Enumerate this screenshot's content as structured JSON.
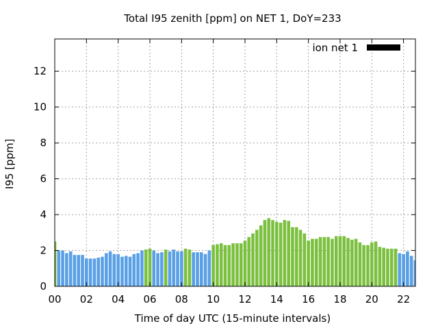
{
  "chart_data": {
    "type": "bar",
    "title": "Total I95 zenith [ppm] on NET 1, DoY=233",
    "xlabel": "Time of day UTC (15-minute intervals)",
    "ylabel": "I95 [ppm]",
    "xlim": [
      0,
      22.75
    ],
    "ylim": [
      0,
      13.8
    ],
    "x_ticks": [
      0,
      2,
      4,
      6,
      8,
      10,
      12,
      14,
      16,
      18,
      20,
      22
    ],
    "x_tick_labels": [
      "00",
      "02",
      "04",
      "06",
      "08",
      "10",
      "12",
      "14",
      "16",
      "18",
      "20",
      "22"
    ],
    "y_ticks": [
      0,
      2,
      4,
      6,
      8,
      10,
      12
    ],
    "y_tick_labels": [
      "0",
      "2",
      "4",
      "6",
      "8",
      "10",
      "12"
    ],
    "grid": true,
    "legend": {
      "label": "ion net 1",
      "color": "#000000",
      "position": "top-right"
    },
    "colors": {
      "blue": "#5aa0e6",
      "green": "#7cc040"
    },
    "interval_hours": 0.25,
    "values": [
      2.5,
      2.0,
      2.0,
      1.85,
      1.95,
      1.75,
      1.75,
      1.75,
      1.55,
      1.55,
      1.55,
      1.6,
      1.65,
      1.85,
      1.95,
      1.8,
      1.8,
      1.65,
      1.7,
      1.65,
      1.8,
      1.85,
      2.0,
      2.05,
      2.1,
      2.0,
      1.85,
      1.9,
      2.05,
      1.95,
      2.05,
      1.95,
      1.95,
      2.1,
      2.05,
      1.9,
      1.9,
      1.9,
      1.8,
      2.0,
      2.3,
      2.35,
      2.4,
      2.3,
      2.3,
      2.4,
      2.4,
      2.4,
      2.55,
      2.75,
      2.95,
      3.15,
      3.4,
      3.7,
      3.8,
      3.7,
      3.6,
      3.55,
      3.7,
      3.65,
      3.3,
      3.3,
      3.15,
      2.95,
      2.55,
      2.65,
      2.65,
      2.75,
      2.75,
      2.75,
      2.65,
      2.8,
      2.8,
      2.8,
      2.7,
      2.6,
      2.65,
      2.45,
      2.3,
      2.3,
      2.45,
      2.5,
      2.2,
      2.15,
      2.1,
      2.1,
      2.1,
      1.85,
      1.8,
      1.95,
      1.7,
      1.45
    ],
    "bar_colors": [
      "green",
      "blue",
      "blue",
      "blue",
      "blue",
      "blue",
      "blue",
      "blue",
      "blue",
      "blue",
      "blue",
      "blue",
      "blue",
      "blue",
      "blue",
      "blue",
      "blue",
      "blue",
      "blue",
      "blue",
      "blue",
      "blue",
      "blue",
      "green",
      "green",
      "blue",
      "blue",
      "blue",
      "green",
      "blue",
      "blue",
      "blue",
      "blue",
      "green",
      "green",
      "blue",
      "blue",
      "blue",
      "blue",
      "blue",
      "green",
      "green",
      "green",
      "green",
      "green",
      "green",
      "green",
      "green",
      "green",
      "green",
      "green",
      "green",
      "green",
      "green",
      "green",
      "green",
      "green",
      "green",
      "green",
      "green",
      "green",
      "green",
      "green",
      "green",
      "green",
      "green",
      "green",
      "green",
      "green",
      "green",
      "green",
      "green",
      "green",
      "green",
      "green",
      "green",
      "green",
      "green",
      "green",
      "green",
      "green",
      "green",
      "green",
      "green",
      "green",
      "green",
      "green",
      "blue",
      "blue",
      "blue",
      "blue",
      "blue"
    ]
  }
}
